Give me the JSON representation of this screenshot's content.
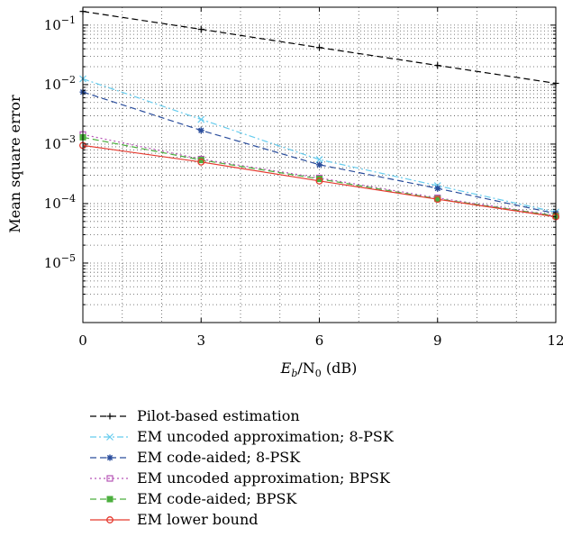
{
  "chart_data": {
    "type": "line",
    "xlabel": {
      "base": "E",
      "sub1": "b",
      "mid": "/N",
      "sub2": "0",
      "unit": " (dB)"
    },
    "ylabel": "Mean square error",
    "x": [
      0,
      3,
      6,
      9,
      12
    ],
    "xlim": [
      0,
      12
    ],
    "ylim": [
      1e-06,
      0.2
    ],
    "yscale": "log",
    "grid": true,
    "legend_placement": "below",
    "x_ticks": [
      {
        "label": "0",
        "value": 0
      },
      {
        "label": "3",
        "value": 3
      },
      {
        "label": "6",
        "value": 6
      },
      {
        "label": "9",
        "value": 9
      },
      {
        "label": "12",
        "value": 12
      }
    ],
    "y_ticks": [
      {
        "base": "10",
        "exp": "−1",
        "value": 0.1
      },
      {
        "base": "10",
        "exp": "−2",
        "value": 0.01
      },
      {
        "base": "10",
        "exp": "−3",
        "value": 0.001
      },
      {
        "base": "10",
        "exp": "−4",
        "value": 0.0001
      },
      {
        "base": "10",
        "exp": "−5",
        "value": 1e-05
      }
    ],
    "series": [
      {
        "name": "Pilot-based estimation",
        "values": [
          0.17,
          0.085,
          0.042,
          0.021,
          0.0105
        ],
        "color": "#000000",
        "dash": "7,4",
        "marker": "plus"
      },
      {
        "name": "EM uncoded approximation; 8-PSK",
        "values": [
          0.0125,
          0.0026,
          0.00055,
          0.0002,
          7.2e-05
        ],
        "color": "#66ccee",
        "dash": "7,3,2,3",
        "marker": "x"
      },
      {
        "name": "EM code-aided; 8-PSK",
        "values": [
          0.0075,
          0.0017,
          0.00045,
          0.00018,
          6.8e-05
        ],
        "color": "#2a4d9c",
        "dash": "7,4",
        "marker": "star"
      },
      {
        "name": "EM uncoded approximation; BPSK",
        "values": [
          0.00145,
          0.00056,
          0.00027,
          0.000125,
          6.3e-05
        ],
        "color": "#b655b6",
        "dash": "2,3",
        "marker": "square"
      },
      {
        "name": "EM code-aided; BPSK",
        "values": [
          0.0013,
          0.00054,
          0.00026,
          0.00012,
          6.2e-05
        ],
        "color": "#4caf3e",
        "dash": "7,4",
        "marker": "filled-square"
      },
      {
        "name": "EM lower bound",
        "values": [
          0.00095,
          0.0005,
          0.00024,
          0.000118,
          6e-05
        ],
        "color": "#e53a2f",
        "dash": "",
        "marker": "circle"
      }
    ]
  }
}
